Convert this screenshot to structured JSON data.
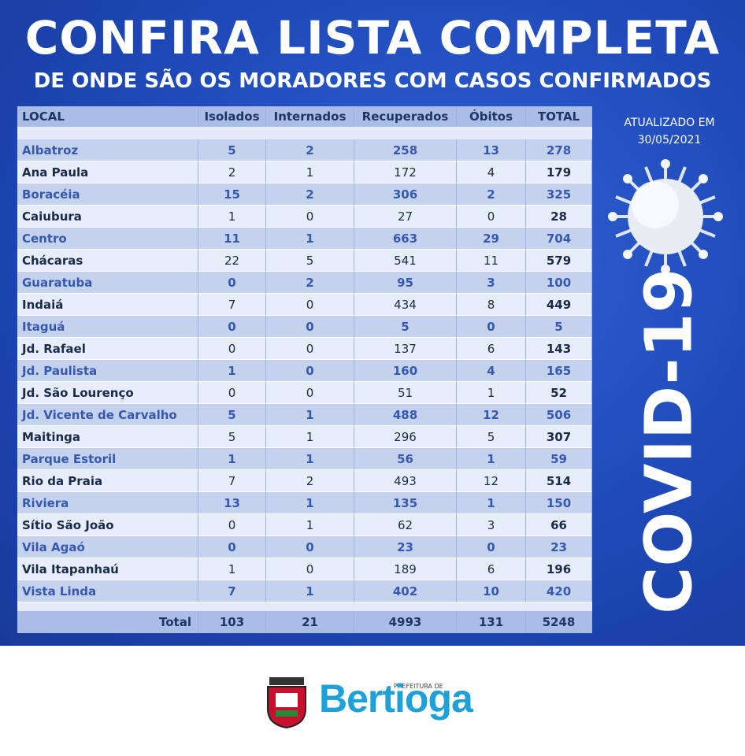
{
  "header": {
    "title": "CONFIRA LISTA COMPLETA",
    "subtitle": "DE ONDE SÃO OS MORADORES COM CASOS CONFIRMADOS"
  },
  "table": {
    "columns": [
      "LOCAL",
      "Isolados",
      "Internados",
      "Recuperados",
      "Óbitos",
      "TOTAL"
    ],
    "rows": [
      [
        "Albatroz",
        5,
        2,
        258,
        13,
        278
      ],
      [
        "Ana Paula",
        2,
        1,
        172,
        4,
        179
      ],
      [
        "Boracéia",
        15,
        2,
        306,
        2,
        325
      ],
      [
        "Caiubura",
        1,
        0,
        27,
        0,
        28
      ],
      [
        "Centro",
        11,
        1,
        663,
        29,
        704
      ],
      [
        "Chácaras",
        22,
        5,
        541,
        11,
        579
      ],
      [
        "Guaratuba",
        0,
        2,
        95,
        3,
        100
      ],
      [
        "Indaiá",
        7,
        0,
        434,
        8,
        449
      ],
      [
        "Itaguá",
        0,
        0,
        5,
        0,
        5
      ],
      [
        "Jd. Rafael",
        0,
        0,
        137,
        6,
        143
      ],
      [
        "Jd. Paulista",
        1,
        0,
        160,
        4,
        165
      ],
      [
        "Jd. São Lourenço",
        0,
        0,
        51,
        1,
        52
      ],
      [
        "Jd. Vicente de Carvalho",
        5,
        1,
        488,
        12,
        506
      ],
      [
        "Maitinga",
        5,
        1,
        296,
        5,
        307
      ],
      [
        "Parque Estoril",
        1,
        1,
        56,
        1,
        59
      ],
      [
        "Rio da Praia",
        7,
        2,
        493,
        12,
        514
      ],
      [
        "Riviera",
        13,
        1,
        135,
        1,
        150
      ],
      [
        "Sítio São João",
        0,
        1,
        62,
        3,
        66
      ],
      [
        "Vila Agaó",
        0,
        0,
        23,
        0,
        23
      ],
      [
        "Vila Itapanhaú",
        1,
        0,
        189,
        6,
        196
      ],
      [
        "Vista Linda",
        7,
        1,
        402,
        10,
        420
      ]
    ],
    "total": [
      "Total",
      103,
      21,
      4993,
      131,
      5248
    ]
  },
  "side": {
    "updated": "ATUALIZADO EM",
    "date": "30/05/2021",
    "label": "COVID-19"
  },
  "footer": {
    "prefix": "PREFEITURA DE",
    "city": "Bertioga"
  }
}
